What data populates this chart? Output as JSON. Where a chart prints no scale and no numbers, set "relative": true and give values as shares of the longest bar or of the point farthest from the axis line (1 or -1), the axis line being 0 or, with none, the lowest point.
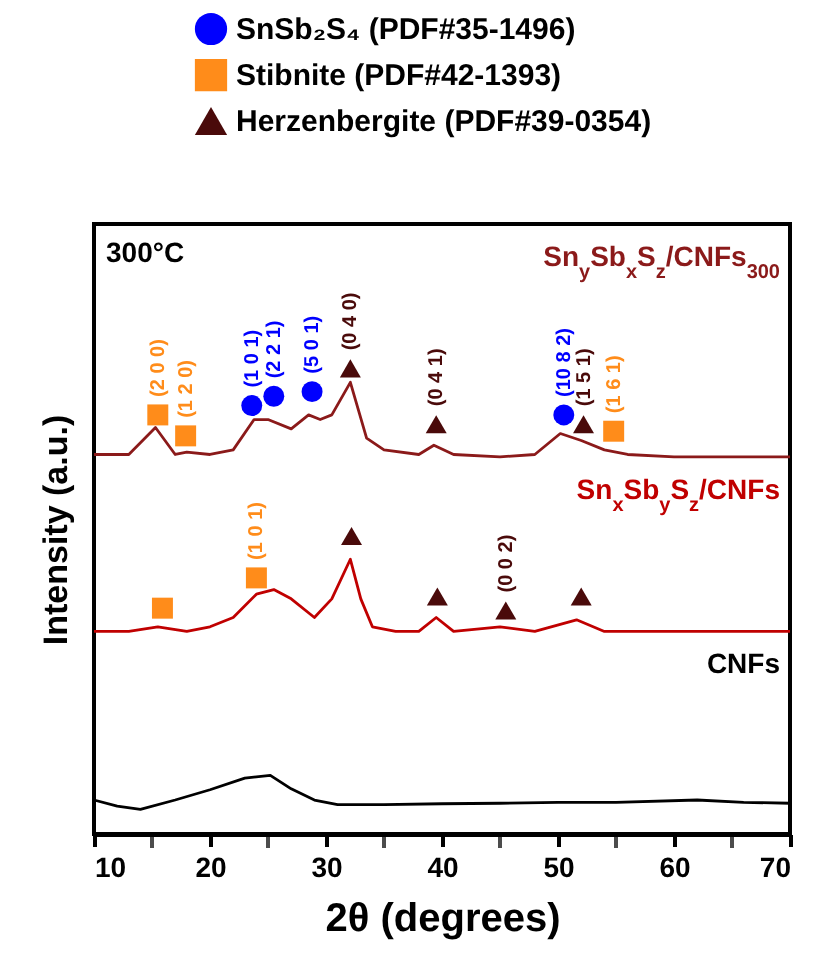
{
  "chart_data": {
    "type": "line",
    "relative": true,
    "xlabel": "2θ (degrees)",
    "ylabel": "Intensity (a.u.)",
    "xlim": [
      10,
      70
    ],
    "xticks": [
      10,
      {
        "value": 15,
        "label": null
      },
      20,
      {
        "value": 25,
        "label": null
      },
      30,
      {
        "value": 35,
        "label": null
      },
      40,
      {
        "value": 45,
        "label": null
      },
      50,
      {
        "value": 55,
        "label": null
      },
      60,
      {
        "value": 65,
        "label": null
      },
      70
    ],
    "legend": "top",
    "grid": false,
    "series": [
      {
        "name": "Sn$_{y}$Sb$_{x}$S$_{z}$/CNFs$_{300}$",
        "color": "#8b1a1a",
        "x": [
          10,
          13,
          15.3,
          17,
          18,
          20,
          22,
          23.8,
          25,
          27,
          28.5,
          29.5,
          30.5,
          32.1,
          33.5,
          35,
          38,
          39.3,
          41,
          45,
          48,
          50.2,
          52,
          54,
          56,
          60,
          65,
          70
        ],
        "values": [
          0.815,
          0.815,
          0.873,
          0.815,
          0.82,
          0.815,
          0.825,
          0.89,
          0.89,
          0.87,
          0.9,
          0.89,
          0.9,
          0.97,
          0.85,
          0.825,
          0.815,
          0.835,
          0.815,
          0.81,
          0.815,
          0.86,
          0.845,
          0.825,
          0.815,
          0.81,
          0.81,
          0.81
        ]
      },
      {
        "name": "Sn$_{x}$Sb$_{y}$S$_{z}$/CNFs",
        "color": "#c00000",
        "x": [
          10,
          13,
          15.5,
          18,
          20,
          22,
          24,
          25.5,
          27,
          29,
          30.5,
          32.1,
          33,
          34,
          36,
          38,
          39.5,
          41,
          45,
          48,
          51.6,
          54,
          60,
          65,
          70
        ],
        "values": [
          0.435,
          0.435,
          0.445,
          0.435,
          0.445,
          0.465,
          0.515,
          0.525,
          0.505,
          0.465,
          0.505,
          0.59,
          0.505,
          0.445,
          0.435,
          0.435,
          0.465,
          0.435,
          0.445,
          0.435,
          0.46,
          0.435,
          0.435,
          0.435,
          0.435
        ]
      },
      {
        "name": "CNFs",
        "color": "#000000",
        "x": [
          10,
          12,
          14,
          17,
          20,
          23,
          25.2,
          27,
          29,
          31,
          35,
          40,
          45,
          50,
          55,
          62,
          66,
          70
        ],
        "values": [
          0.073,
          0.06,
          0.053,
          0.073,
          0.095,
          0.12,
          0.126,
          0.097,
          0.073,
          0.063,
          0.063,
          0.065,
          0.066,
          0.068,
          0.068,
          0.073,
          0.068,
          0.066
        ]
      },
      {
        "name": "SnSb₂S₄ (PDF#35-1496)",
        "type": "scatter",
        "marker": "circle",
        "color": "#0000ff",
        "x": [
          23.6,
          25.5,
          28.8,
          50.5
        ],
        "values": [
          0.92,
          0.94,
          0.95,
          0.9
        ]
      },
      {
        "name": "Stibnite (PDF#42-1393)",
        "type": "scatter",
        "marker": "square",
        "color": "#ff8c1a",
        "x": [
          15.5,
          17.9,
          54.8,
          15.9,
          24.0
        ],
        "values": [
          0.9,
          0.855,
          0.865,
          0.485,
          0.55
        ]
      },
      {
        "name": "Herzenbergite (PDF#39-0354)",
        "type": "scatter",
        "marker": "triangle",
        "color": "#4a0a0a",
        "x": [
          32.1,
          39.5,
          52.2,
          32.2,
          39.6,
          45.5,
          52.0
        ],
        "values": [
          1.0,
          0.88,
          0.88,
          0.64,
          0.51,
          0.48,
          0.51
        ]
      }
    ],
    "annotations": [
      "300°C",
      {
        "text": "(2 0 0)",
        "x": 15.5,
        "y": 0.9
      },
      {
        "text": "(1 2 0)",
        "x": 17.9,
        "y": 0.855
      },
      {
        "text": "(1 0 1)",
        "x": 23.6,
        "y": 0.92
      },
      {
        "text": "(2 2 1)",
        "x": 25.5,
        "y": 0.94
      },
      {
        "text": "(5 0 1)",
        "x": 28.8,
        "y": 0.95
      },
      {
        "text": "(0 4 0)",
        "x": 32.1,
        "y": 1.0
      },
      {
        "text": "(0 4 1)",
        "x": 39.5,
        "y": 0.88
      },
      {
        "text": "(10 8 2)",
        "x": 50.5,
        "y": 0.9
      },
      {
        "text": "(1 5 1)",
        "x": 52.2,
        "y": 0.88
      },
      {
        "text": "(1 6 1)",
        "x": 54.8,
        "y": 0.865
      },
      {
        "text": "(1 0 1)",
        "x": 24.0,
        "y": 0.55
      },
      {
        "text": "(0 0 2)",
        "x": 45.5,
        "y": 0.48
      }
    ]
  }
}
